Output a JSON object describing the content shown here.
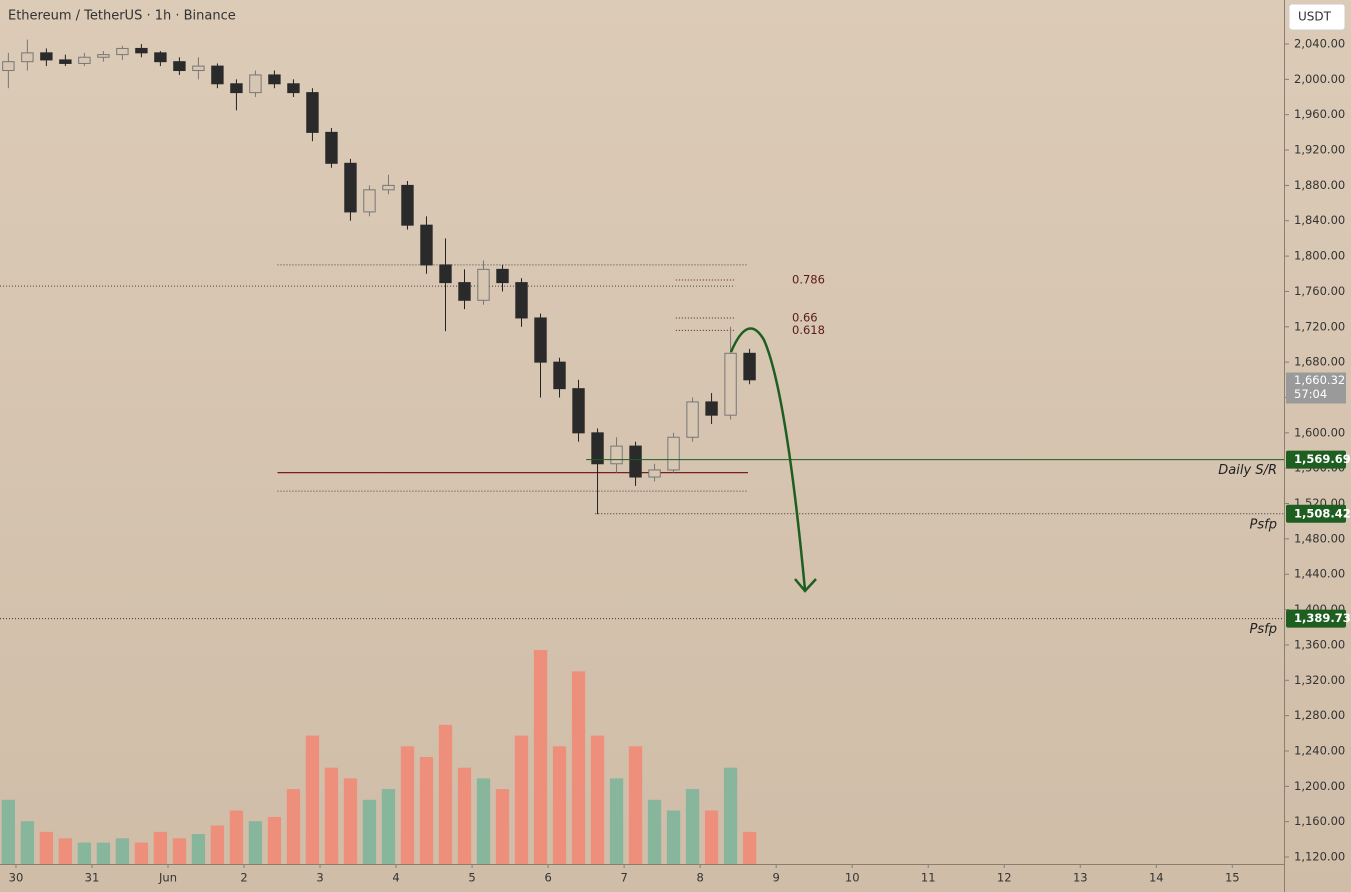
{
  "chart_data": {
    "type": "candlestick",
    "title": "Ethereum / TetherUS · 1h · Binance",
    "currency": "USDT",
    "xlim": [
      -0.21,
      16.68
    ],
    "ylim": [
      1112.1,
      2089.8
    ],
    "xticks": [
      {
        "value": 0,
        "label": "30"
      },
      {
        "value": 1,
        "label": "31"
      },
      {
        "value": 2,
        "label": "Jun"
      },
      {
        "value": 3,
        "label": "2"
      },
      {
        "value": 4,
        "label": "3"
      },
      {
        "value": 5,
        "label": "4"
      },
      {
        "value": 6,
        "label": "5"
      },
      {
        "value": 7,
        "label": "6"
      },
      {
        "value": 8,
        "label": "7"
      },
      {
        "value": 9,
        "label": "8"
      },
      {
        "value": 10,
        "label": "9"
      },
      {
        "value": 11,
        "label": "10"
      },
      {
        "value": 12,
        "label": "11"
      },
      {
        "value": 13,
        "label": "12"
      },
      {
        "value": 14,
        "label": "13"
      },
      {
        "value": 15,
        "label": "14"
      },
      {
        "value": 16,
        "label": "15"
      }
    ],
    "yticks": [
      {
        "value": 2040,
        "label": "2,040.00"
      },
      {
        "value": 2000,
        "label": "2,000.00"
      },
      {
        "value": 1960,
        "label": "1,960.00"
      },
      {
        "value": 1920,
        "label": "1,920.00"
      },
      {
        "value": 1880,
        "label": "1,880.00"
      },
      {
        "value": 1840,
        "label": "1,840.00"
      },
      {
        "value": 1800,
        "label": "1,800.00"
      },
      {
        "value": 1760,
        "label": "1,760.00"
      },
      {
        "value": 1720,
        "label": "1,720.00"
      },
      {
        "value": 1680,
        "label": "1,680.00"
      },
      {
        "value": 1640,
        "label": "1,640.00"
      },
      {
        "value": 1600,
        "label": "1,600.00"
      },
      {
        "value": 1560,
        "label": "1,560.00"
      },
      {
        "value": 1520,
        "label": "1,520.00"
      },
      {
        "value": 1480,
        "label": "1,480.00"
      },
      {
        "value": 1440,
        "label": "1,440.00"
      },
      {
        "value": 1400,
        "label": "1,400.00"
      },
      {
        "value": 1360,
        "label": "1,360.00"
      },
      {
        "value": 1320,
        "label": "1,320.00"
      },
      {
        "value": 1280,
        "label": "1,280.00"
      },
      {
        "value": 1240,
        "label": "1,240.00"
      },
      {
        "value": 1200,
        "label": "1,200.00"
      },
      {
        "value": 1160,
        "label": "1,160.00"
      },
      {
        "value": 1120,
        "label": "1,120.00"
      }
    ],
    "candles": {
      "x": [
        -0.1,
        0.15,
        0.4,
        0.65,
        0.9,
        1.15,
        1.4,
        1.65,
        1.9,
        2.15,
        2.4,
        2.65,
        2.9,
        3.15,
        3.4,
        3.65,
        3.9,
        4.15,
        4.4,
        4.65,
        4.9,
        5.15,
        5.4,
        5.65,
        5.9,
        6.15,
        6.4,
        6.65,
        6.9,
        7.15,
        7.4,
        7.65,
        7.9,
        8.15,
        8.4,
        8.65,
        8.9,
        9.15,
        9.4,
        9.65
      ],
      "open": [
        2010,
        2020,
        2030,
        2022,
        2018,
        2025,
        2028,
        2035,
        2030,
        2020,
        2010,
        2015,
        1995,
        1985,
        2005,
        1995,
        1985,
        1940,
        1905,
        1850,
        1875,
        1880,
        1835,
        1790,
        1770,
        1750,
        1785,
        1770,
        1730,
        1680,
        1650,
        1600,
        1565,
        1585,
        1550,
        1558,
        1595,
        1635,
        1620,
        1690
      ],
      "high": [
        2030,
        2045,
        2035,
        2028,
        2030,
        2032,
        2038,
        2040,
        2032,
        2025,
        2025,
        2018,
        2000,
        2010,
        2010,
        2000,
        1990,
        1945,
        1910,
        1880,
        1892,
        1885,
        1845,
        1820,
        1785,
        1795,
        1790,
        1775,
        1735,
        1685,
        1660,
        1605,
        1595,
        1590,
        1565,
        1600,
        1640,
        1645,
        1720,
        1695
      ],
      "low": [
        1990,
        2010,
        2015,
        2015,
        2015,
        2020,
        2022,
        2025,
        2015,
        2005,
        2000,
        1990,
        1965,
        1980,
        1990,
        1980,
        1930,
        1900,
        1840,
        1845,
        1870,
        1830,
        1780,
        1715,
        1740,
        1745,
        1760,
        1720,
        1640,
        1640,
        1590,
        1508,
        1555,
        1540,
        1545,
        1555,
        1590,
        1610,
        1615,
        1655
      ],
      "close": [
        2020,
        2030,
        2022,
        2018,
        2025,
        2028,
        2035,
        2030,
        2020,
        2010,
        2015,
        1995,
        1985,
        2005,
        1995,
        1985,
        1940,
        1905,
        1850,
        1875,
        1880,
        1835,
        1790,
        1770,
        1750,
        1785,
        1770,
        1730,
        1680,
        1650,
        1600,
        1565,
        1585,
        1550,
        1558,
        1595,
        1635,
        1620,
        1690,
        1660
      ],
      "volume": [
        30,
        20,
        15,
        12,
        10,
        10,
        12,
        10,
        15,
        12,
        14,
        18,
        25,
        20,
        22,
        35,
        60,
        45,
        40,
        30,
        35,
        55,
        50,
        65,
        45,
        40,
        35,
        60,
        100,
        55,
        90,
        60,
        40,
        55,
        30,
        25,
        35,
        25,
        45,
        15
      ],
      "volume_lim": [
        0,
        100
      ],
      "up_color": "#7fb59b",
      "down_color": "#ef8a76"
    },
    "levels": [
      {
        "value": 1569.69,
        "label": "1,569.69",
        "text": "Daily S/R",
        "from": 7.5,
        "style": "solid",
        "color": "#1e5e20"
      },
      {
        "value": 1508.42,
        "label": "1,508.42",
        "text": "Psfp",
        "from": 7.62,
        "style": "dotted",
        "color": "#1e5e20"
      },
      {
        "value": 1389.73,
        "label": "1,389.73",
        "text": "Psfp",
        "from": -0.21,
        "style": "dotted",
        "color": "#1e5e20"
      }
    ],
    "marker_line": {
      "value": 1766,
      "from": -0.21,
      "to": 9.46
    },
    "fib": {
      "from": 8.68,
      "to": 9.46,
      "levels": [
        {
          "ratio": 0.786,
          "price": 1773
        },
        {
          "ratio": 0.66,
          "price": 1730
        },
        {
          "ratio": 0.618,
          "price": 1716
        }
      ]
    },
    "profile": {
      "from": 3.44,
      "to": 9.63,
      "poc": 1555,
      "value_area": [
        1790,
        1534
      ]
    },
    "last_price": {
      "value": 1660.32,
      "label": "1,660.32",
      "countdown": "57:04"
    }
  }
}
